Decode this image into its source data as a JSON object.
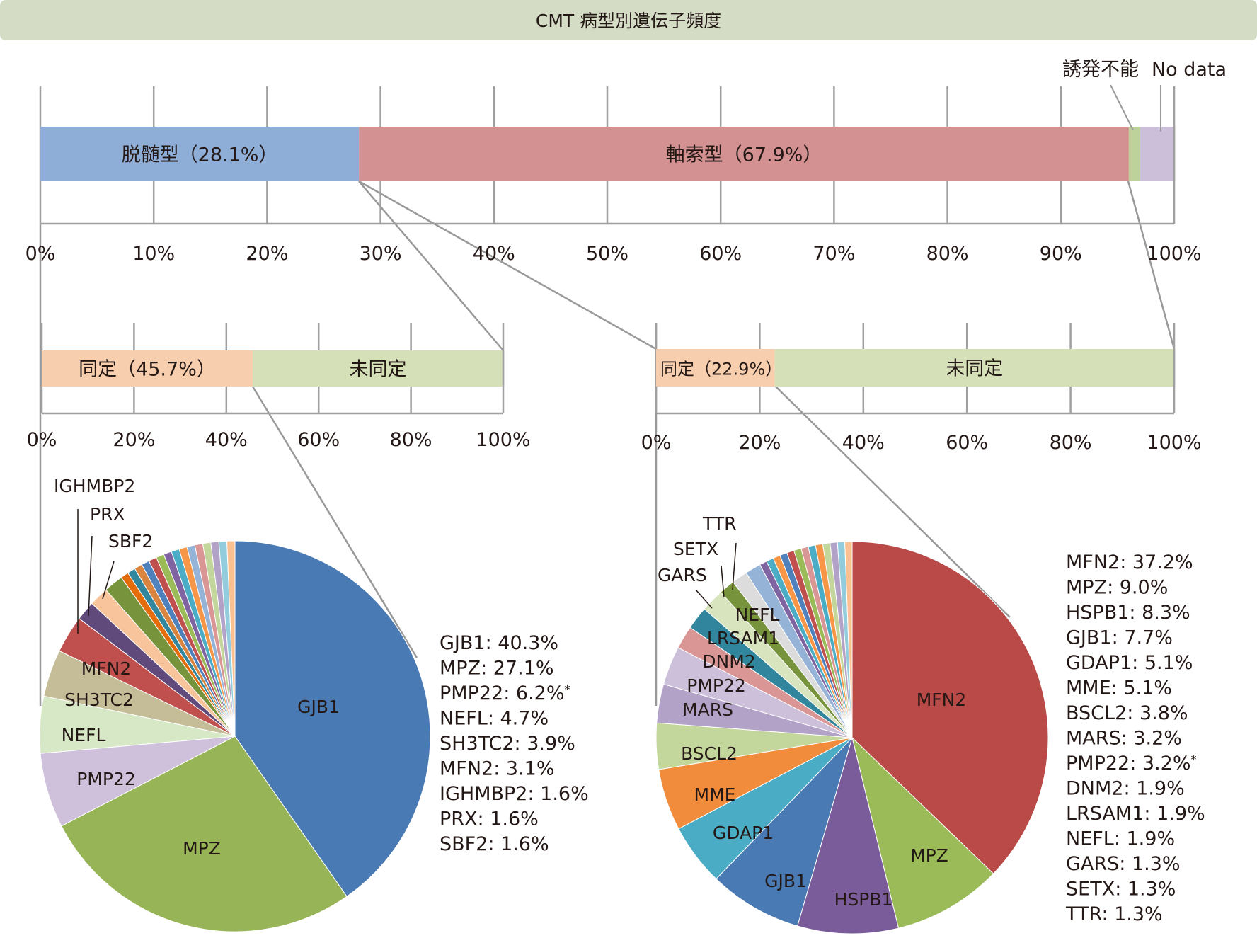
{
  "title": "CMT 病型別遺伝子頻度",
  "chart_data": [
    {
      "type": "bar",
      "orientation": "horizontal-stacked",
      "segments": [
        {
          "label": "脱髄型（28.1%）",
          "value": 28.1,
          "color": "#8eaed8"
        },
        {
          "label": "軸索型（67.9%）",
          "value": 67.9,
          "color": "#d39191"
        },
        {
          "label": "誘発不能",
          "value": 1.0,
          "color": "#bdd19a"
        },
        {
          "label": "No data",
          "value": 3.0,
          "color": "#cbbfd9"
        }
      ],
      "xlim": [
        0,
        100
      ],
      "ticks": [
        "0%",
        "10%",
        "20%",
        "30%",
        "40%",
        "50%",
        "60%",
        "70%",
        "80%",
        "90%",
        "100%"
      ]
    },
    {
      "type": "bar",
      "orientation": "horizontal-stacked",
      "segments": [
        {
          "label": "同定（45.7%）",
          "value": 45.7,
          "color": "#f8cfae"
        },
        {
          "label": "未同定",
          "value": 54.3,
          "color": "#d5e0b8"
        }
      ],
      "xlim": [
        0,
        100
      ],
      "ticks": [
        "0%",
        "20%",
        "40%",
        "60%",
        "80%",
        "100%"
      ]
    },
    {
      "type": "bar",
      "orientation": "horizontal-stacked",
      "segments": [
        {
          "label": "同定（22.9%）",
          "value": 22.9,
          "color": "#f8cfae"
        },
        {
          "label": "未同定",
          "value": 77.1,
          "color": "#d5e0b8"
        }
      ],
      "xlim": [
        0,
        100
      ],
      "ticks": [
        "0%",
        "20%",
        "40%",
        "60%",
        "80%",
        "100%"
      ]
    },
    {
      "type": "pie",
      "slices": [
        {
          "label": "GJB1",
          "value": 40.3,
          "color": "#4a7ab4",
          "inner": true
        },
        {
          "label": "MPZ",
          "value": 27.1,
          "color": "#97b556",
          "inner": true
        },
        {
          "label": "PMP22",
          "value": 6.2,
          "color": "#cfc1dc",
          "inner": true
        },
        {
          "label": "NEFL",
          "value": 4.7,
          "color": "#d6e8c5",
          "inner": true
        },
        {
          "label": "SH3TC2",
          "value": 3.9,
          "color": "#c4bd97",
          "inner": true
        },
        {
          "label": "MFN2",
          "value": 3.1,
          "color": "#c0504d",
          "inner": true
        },
        {
          "label": "IGHMBP2",
          "value": 1.6,
          "color": "#5f4a7b",
          "inner": false
        },
        {
          "label": "PRX",
          "value": 1.6,
          "color": "#f8c49c",
          "inner": false
        },
        {
          "label": "SBF2",
          "value": 1.6,
          "color": "#77933c",
          "inner": false
        },
        {
          "label": "",
          "value": 0.66,
          "color": "#e46c0a"
        },
        {
          "label": "",
          "value": 0.66,
          "color": "#31859c"
        },
        {
          "label": "",
          "value": 0.66,
          "color": "#d9843f"
        },
        {
          "label": "",
          "value": 0.66,
          "color": "#4f81bd"
        },
        {
          "label": "",
          "value": 0.66,
          "color": "#c0504d"
        },
        {
          "label": "",
          "value": 0.66,
          "color": "#9bbb59"
        },
        {
          "label": "",
          "value": 0.66,
          "color": "#8064a2"
        },
        {
          "label": "",
          "value": 0.66,
          "color": "#4bacc6"
        },
        {
          "label": "",
          "value": 0.66,
          "color": "#f79646"
        },
        {
          "label": "",
          "value": 0.66,
          "color": "#95b3d7"
        },
        {
          "label": "",
          "value": 0.66,
          "color": "#d99694"
        },
        {
          "label": "",
          "value": 0.66,
          "color": "#c3d69b"
        },
        {
          "label": "",
          "value": 0.66,
          "color": "#b3a2c7"
        },
        {
          "label": "",
          "value": 0.66,
          "color": "#93cddd"
        },
        {
          "label": "",
          "value": 0.66,
          "color": "#fac08f"
        }
      ],
      "legend": [
        "GJB1: 40.3%",
        "MPZ: 27.1%",
        "PMP22: 6.2%",
        "NEFL: 4.7%",
        "SH3TC2: 3.9%",
        "MFN2: 3.1%",
        "IGHMBP2: 1.6%",
        "PRX: 1.6%",
        "SBF2: 1.6%"
      ],
      "legend_note_index": 2
    },
    {
      "type": "pie",
      "slices": [
        {
          "label": "MFN2",
          "value": 37.2,
          "color": "#b94a48",
          "inner": true
        },
        {
          "label": "MPZ",
          "value": 9.0,
          "color": "#9bbb59",
          "inner": true
        },
        {
          "label": "HSPB1",
          "value": 8.3,
          "color": "#7b5c9a",
          "inner": true
        },
        {
          "label": "GJB1",
          "value": 7.7,
          "color": "#4a7ab4",
          "inner": true
        },
        {
          "label": "GDAP1",
          "value": 5.1,
          "color": "#4bacc6",
          "inner": true
        },
        {
          "label": "MME",
          "value": 5.1,
          "color": "#f08c3c",
          "inner": true
        },
        {
          "label": "BSCL2",
          "value": 3.8,
          "color": "#c3d69b",
          "inner": true
        },
        {
          "label": "MARS",
          "value": 3.2,
          "color": "#b3a2c7",
          "inner": true
        },
        {
          "label": "PMP22",
          "value": 3.2,
          "color": "#ccc0da",
          "inner": true
        },
        {
          "label": "DNM2",
          "value": 1.9,
          "color": "#d99694",
          "inner": true
        },
        {
          "label": "LRSAM1",
          "value": 1.9,
          "color": "#31859c",
          "inner": true
        },
        {
          "label": "NEFL",
          "value": 1.9,
          "color": "#d7e4bd",
          "inner": true
        },
        {
          "label": "GARS",
          "value": 1.3,
          "color": "#77933c",
          "inner": false
        },
        {
          "label": "SETX",
          "value": 1.3,
          "color": "#dcdcdc",
          "inner": false
        },
        {
          "label": "TTR",
          "value": 1.3,
          "color": "#95b3d7",
          "inner": false
        },
        {
          "label": "",
          "value": 0.6,
          "color": "#8064a2"
        },
        {
          "label": "",
          "value": 0.6,
          "color": "#4bacc6"
        },
        {
          "label": "",
          "value": 0.6,
          "color": "#f79646"
        },
        {
          "label": "",
          "value": 0.6,
          "color": "#4f81bd"
        },
        {
          "label": "",
          "value": 0.6,
          "color": "#c0504d"
        },
        {
          "label": "",
          "value": 0.6,
          "color": "#9bbb59"
        },
        {
          "label": "",
          "value": 0.6,
          "color": "#d99694"
        },
        {
          "label": "",
          "value": 0.6,
          "color": "#4bacc6"
        },
        {
          "label": "",
          "value": 0.6,
          "color": "#f79646"
        },
        {
          "label": "",
          "value": 0.6,
          "color": "#c3d69b"
        },
        {
          "label": "",
          "value": 0.6,
          "color": "#b3a2c7"
        },
        {
          "label": "",
          "value": 0.6,
          "color": "#93cddd"
        },
        {
          "label": "",
          "value": 0.6,
          "color": "#fac08f"
        }
      ],
      "legend": [
        "MFN2: 37.2%",
        "MPZ: 9.0%",
        "HSPB1: 8.3%",
        "GJB1: 7.7%",
        "GDAP1: 5.1%",
        "MME: 5.1%",
        "BSCL2: 3.8%",
        "MARS: 3.2%",
        "PMP22: 3.2%",
        "DNM2: 1.9%",
        "LRSAM1: 1.9%",
        "NEFL: 1.9%",
        "GARS: 1.3%",
        "SETX: 1.3%",
        "TTR: 1.3%"
      ],
      "legend_note_index": 8
    }
  ],
  "note_mark": "*",
  "colors": {
    "title_bg": "#d4dcc6",
    "axis": "#a0a0a0",
    "connector": "#999999"
  }
}
